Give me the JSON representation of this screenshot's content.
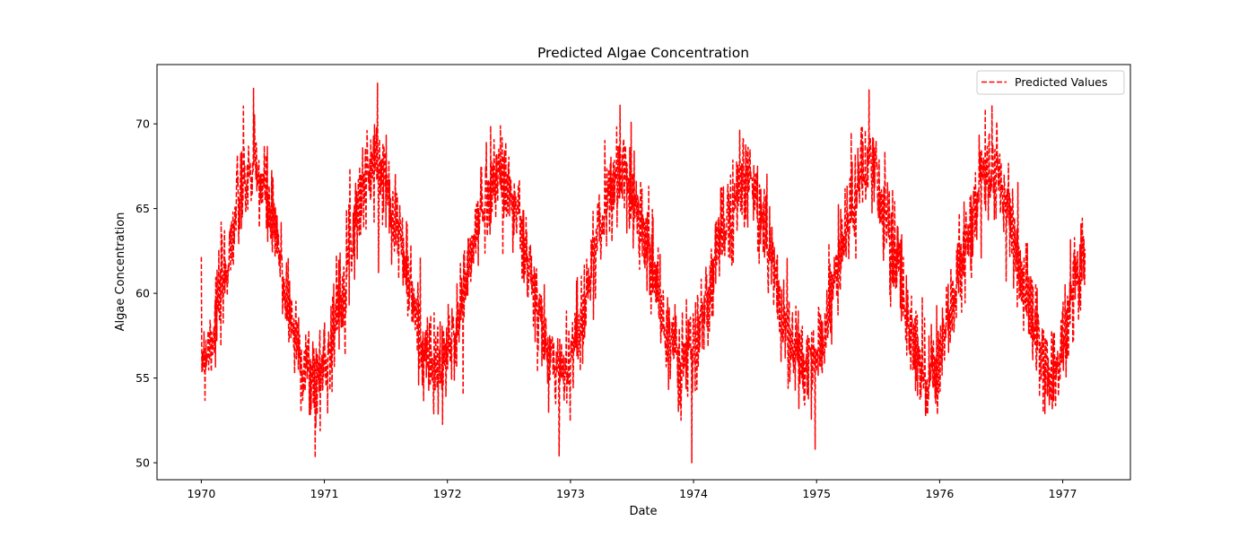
{
  "chart_data": {
    "type": "line",
    "title": "Predicted Algae Concentration",
    "xlabel": "Date",
    "ylabel": "Algae Concentration",
    "x_range": [
      "1970-01-01",
      "1977-03-08"
    ],
    "xlim": [
      1969.64,
      1977.55
    ],
    "ylim": [
      49.0,
      73.5
    ],
    "x_ticks": [
      {
        "value": 1970,
        "label": "1970"
      },
      {
        "value": 1971,
        "label": "1971"
      },
      {
        "value": 1972,
        "label": "1972"
      },
      {
        "value": 1973,
        "label": "1973"
      },
      {
        "value": 1974,
        "label": "1974"
      },
      {
        "value": 1975,
        "label": "1975"
      },
      {
        "value": 1976,
        "label": "1976"
      },
      {
        "value": 1977,
        "label": "1977"
      }
    ],
    "y_ticks": [
      {
        "value": 50,
        "label": "50"
      },
      {
        "value": 55,
        "label": "55"
      },
      {
        "value": 60,
        "label": "60"
      },
      {
        "value": 65,
        "label": "65"
      },
      {
        "value": 70,
        "label": "70"
      }
    ],
    "grid": false,
    "legend": {
      "position": "top-right"
    },
    "series": [
      {
        "name": "Predicted Values",
        "color": "#ff0000",
        "line_style": "dashed",
        "pattern": "annual sinusoid with daily noise; mean 61, amplitude 5.5, peak around mid-year",
        "sampling": "daily",
        "seasonal_points": [
          {
            "date": "1970-01-01",
            "value": 56.5
          },
          {
            "date": "1970-06-01",
            "value": 67.0
          },
          {
            "date": "1970-12-01",
            "value": 55.0
          },
          {
            "date": "1971-06-01",
            "value": 67.5
          },
          {
            "date": "1971-12-01",
            "value": 55.5
          },
          {
            "date": "1972-06-01",
            "value": 67.0
          },
          {
            "date": "1972-12-01",
            "value": 55.5
          },
          {
            "date": "1973-06-01",
            "value": 67.0
          },
          {
            "date": "1973-12-01",
            "value": 56.0
          },
          {
            "date": "1974-06-01",
            "value": 66.5
          },
          {
            "date": "1974-12-01",
            "value": 55.5
          },
          {
            "date": "1975-06-01",
            "value": 67.0
          },
          {
            "date": "1975-12-01",
            "value": 55.5
          },
          {
            "date": "1976-06-01",
            "value": 67.0
          },
          {
            "date": "1976-12-01",
            "value": 55.5
          },
          {
            "date": "1977-03-08",
            "value": 62.0
          }
        ],
        "extremes": [
          {
            "date": "1970-06-05",
            "value": 72.1
          },
          {
            "date": "1970-12-05",
            "value": 50.3
          },
          {
            "date": "1971-06-08",
            "value": 72.4
          },
          {
            "date": "1972-11-28",
            "value": 50.4
          },
          {
            "date": "1973-12-27",
            "value": 50.0
          },
          {
            "date": "1974-12-28",
            "value": 50.8
          },
          {
            "date": "1975-06-05",
            "value": 72.0
          },
          {
            "date": "1976-06-05",
            "value": 71.1
          }
        ]
      }
    ]
  }
}
